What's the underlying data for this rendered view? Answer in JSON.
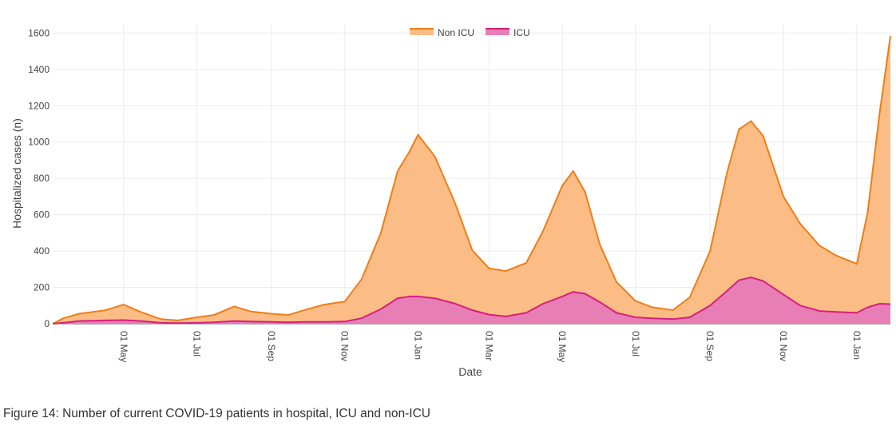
{
  "caption": "Figure 14: Number of current COVID-19 patients in hospital, ICU and non-ICU",
  "chart_data": {
    "type": "area",
    "stacked": true,
    "x_type": "date",
    "title": "",
    "xlabel": "Date",
    "ylabel": "Hospitalized cases (n)",
    "ylim": [
      0,
      1650
    ],
    "y_ticks": [
      0,
      200,
      400,
      600,
      800,
      1000,
      1200,
      1400,
      1600
    ],
    "grid": true,
    "legend_position": "top-center",
    "x_range": [
      "2020-03-03",
      "2022-01-29"
    ],
    "x_ticks": [
      {
        "date": "2020-05-01",
        "label": "01 May"
      },
      {
        "date": "2020-07-01",
        "label": "01 Jul"
      },
      {
        "date": "2020-09-01",
        "label": "01 Sep"
      },
      {
        "date": "2020-11-01",
        "label": "01 Nov"
      },
      {
        "date": "2021-01-01",
        "label": "01 Jan"
      },
      {
        "date": "2021-03-01",
        "label": "01 Mar"
      },
      {
        "date": "2021-05-01",
        "label": "01 May"
      },
      {
        "date": "2021-07-01",
        "label": "01 Jul"
      },
      {
        "date": "2021-09-01",
        "label": "01 Sep"
      },
      {
        "date": "2021-11-01",
        "label": "01 Nov"
      },
      {
        "date": "2022-01-01",
        "label": "01 Jan"
      }
    ],
    "series": [
      {
        "name": "ICU",
        "color": "#d6207e",
        "fill": "#e77fb6",
        "points": [
          [
            "2020-03-03",
            0
          ],
          [
            "2020-03-12",
            5
          ],
          [
            "2020-03-25",
            15
          ],
          [
            "2020-04-15",
            18
          ],
          [
            "2020-05-01",
            20
          ],
          [
            "2020-05-15",
            15
          ],
          [
            "2020-06-01",
            5
          ],
          [
            "2020-06-15",
            3
          ],
          [
            "2020-07-01",
            5
          ],
          [
            "2020-07-15",
            8
          ],
          [
            "2020-08-01",
            15
          ],
          [
            "2020-08-15",
            12
          ],
          [
            "2020-09-01",
            10
          ],
          [
            "2020-09-15",
            8
          ],
          [
            "2020-10-01",
            10
          ],
          [
            "2020-10-15",
            10
          ],
          [
            "2020-11-01",
            12
          ],
          [
            "2020-11-15",
            30
          ],
          [
            "2020-12-01",
            80
          ],
          [
            "2020-12-15",
            140
          ],
          [
            "2020-12-25",
            150
          ],
          [
            "2021-01-01",
            150
          ],
          [
            "2021-01-15",
            140
          ],
          [
            "2021-02-01",
            110
          ],
          [
            "2021-02-15",
            75
          ],
          [
            "2021-03-01",
            50
          ],
          [
            "2021-03-15",
            40
          ],
          [
            "2021-04-01",
            60
          ],
          [
            "2021-04-15",
            110
          ],
          [
            "2021-05-01",
            150
          ],
          [
            "2021-05-10",
            175
          ],
          [
            "2021-05-20",
            165
          ],
          [
            "2021-06-01",
            120
          ],
          [
            "2021-06-15",
            60
          ],
          [
            "2021-07-01",
            35
          ],
          [
            "2021-07-15",
            30
          ],
          [
            "2021-08-01",
            25
          ],
          [
            "2021-08-15",
            35
          ],
          [
            "2021-09-01",
            100
          ],
          [
            "2021-09-15",
            180
          ],
          [
            "2021-09-25",
            240
          ],
          [
            "2021-10-05",
            255
          ],
          [
            "2021-10-15",
            235
          ],
          [
            "2021-11-01",
            160
          ],
          [
            "2021-11-15",
            100
          ],
          [
            "2021-12-01",
            70
          ],
          [
            "2021-12-15",
            65
          ],
          [
            "2022-01-01",
            60
          ],
          [
            "2022-01-10",
            90
          ],
          [
            "2022-01-20",
            110
          ],
          [
            "2022-01-29",
            108
          ]
        ]
      },
      {
        "name": "Non ICU",
        "color": "#f07d15",
        "fill": "#fbbd85",
        "points": [
          [
            "2020-03-03",
            0
          ],
          [
            "2020-03-12",
            25
          ],
          [
            "2020-03-25",
            40
          ],
          [
            "2020-04-15",
            55
          ],
          [
            "2020-05-01",
            85
          ],
          [
            "2020-05-15",
            50
          ],
          [
            "2020-06-01",
            20
          ],
          [
            "2020-06-15",
            15
          ],
          [
            "2020-07-01",
            30
          ],
          [
            "2020-07-15",
            40
          ],
          [
            "2020-08-01",
            80
          ],
          [
            "2020-08-15",
            55
          ],
          [
            "2020-09-01",
            45
          ],
          [
            "2020-09-15",
            40
          ],
          [
            "2020-10-01",
            70
          ],
          [
            "2020-10-15",
            95
          ],
          [
            "2020-11-01",
            110
          ],
          [
            "2020-11-15",
            215
          ],
          [
            "2020-12-01",
            420
          ],
          [
            "2020-12-15",
            700
          ],
          [
            "2020-12-25",
            800
          ],
          [
            "2021-01-01",
            890
          ],
          [
            "2021-01-15",
            780
          ],
          [
            "2021-02-01",
            550
          ],
          [
            "2021-02-15",
            330
          ],
          [
            "2021-03-01",
            255
          ],
          [
            "2021-03-15",
            250
          ],
          [
            "2021-04-01",
            275
          ],
          [
            "2021-04-15",
            400
          ],
          [
            "2021-05-01",
            610
          ],
          [
            "2021-05-10",
            665
          ],
          [
            "2021-05-20",
            560
          ],
          [
            "2021-06-01",
            320
          ],
          [
            "2021-06-15",
            170
          ],
          [
            "2021-07-01",
            90
          ],
          [
            "2021-07-15",
            60
          ],
          [
            "2021-08-01",
            50
          ],
          [
            "2021-08-15",
            110
          ],
          [
            "2021-09-01",
            300
          ],
          [
            "2021-09-15",
            650
          ],
          [
            "2021-09-25",
            830
          ],
          [
            "2021-10-05",
            860
          ],
          [
            "2021-10-15",
            800
          ],
          [
            "2021-11-01",
            540
          ],
          [
            "2021-11-15",
            450
          ],
          [
            "2021-12-01",
            360
          ],
          [
            "2021-12-15",
            310
          ],
          [
            "2022-01-01",
            270
          ],
          [
            "2022-01-10",
            520
          ],
          [
            "2022-01-20",
            1050
          ],
          [
            "2022-01-29",
            1475
          ]
        ]
      }
    ]
  }
}
